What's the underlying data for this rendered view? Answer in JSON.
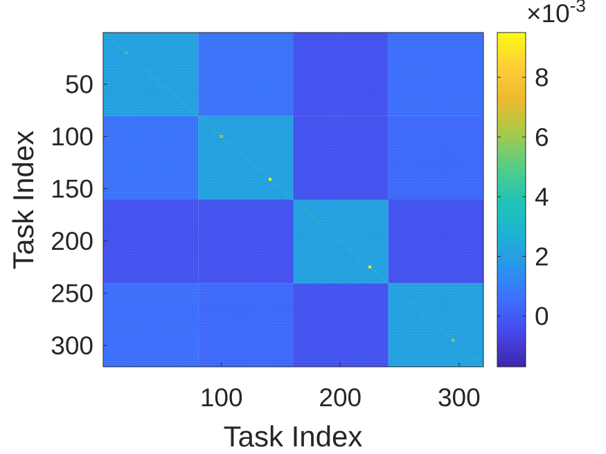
{
  "chart_data": {
    "type": "heatmap",
    "title": "",
    "xlabel": "Task Index",
    "ylabel": "Task Index",
    "x_range": [
      1,
      320
    ],
    "y_range": [
      1,
      320
    ],
    "y_reversed": true,
    "x_ticks": [
      100,
      200,
      300
    ],
    "y_ticks": [
      50,
      100,
      150,
      200,
      250,
      300
    ],
    "x_tick_labels": [
      "100",
      "200",
      "300"
    ],
    "y_tick_labels": [
      "50",
      "100",
      "150",
      "200",
      "250",
      "300"
    ],
    "colormap": "parula",
    "colormap_stops": [
      "#3e26a8",
      "#4746eb",
      "#3e6ffe",
      "#2797eb",
      "#1fb3d3",
      "#20c5b4",
      "#58cd86",
      "#a8c949",
      "#ecba30",
      "#fecf36",
      "#f9fb15"
    ],
    "color_range": [
      -0.0017,
      0.0095
    ],
    "colorbar": {
      "ticks": [
        0,
        2,
        4,
        6,
        8
      ],
      "tick_labels": [
        "0",
        "2",
        "4",
        "6",
        "8"
      ],
      "exponent_label": "×10",
      "exponent_power": "-3"
    },
    "blocks": [
      {
        "start": 1,
        "end": 80,
        "within_value": 0.0021
      },
      {
        "start": 81,
        "end": 160,
        "within_value": 0.0021
      },
      {
        "start": 161,
        "end": 240,
        "within_value": 0.0021
      },
      {
        "start": 241,
        "end": 320,
        "within_value": 0.0021
      }
    ],
    "off_block_values": [
      [
        0.0021,
        0.0007,
        -0.0002,
        0.0006
      ],
      [
        0.0007,
        0.0021,
        -0.0002,
        0.0004
      ],
      [
        -0.0002,
        -0.0002,
        0.0021,
        -0.0002
      ],
      [
        0.0006,
        0.0004,
        -0.0002,
        0.0021
      ]
    ],
    "bright_points": [
      {
        "x": 141,
        "y": 141,
        "value": 0.0095
      },
      {
        "x": 225,
        "y": 225,
        "value": 0.009
      },
      {
        "x": 20,
        "y": 20,
        "value": 0.0045
      },
      {
        "x": 100,
        "y": 100,
        "value": 0.006
      },
      {
        "x": 295,
        "y": 295,
        "value": 0.006
      }
    ],
    "grid": false
  }
}
